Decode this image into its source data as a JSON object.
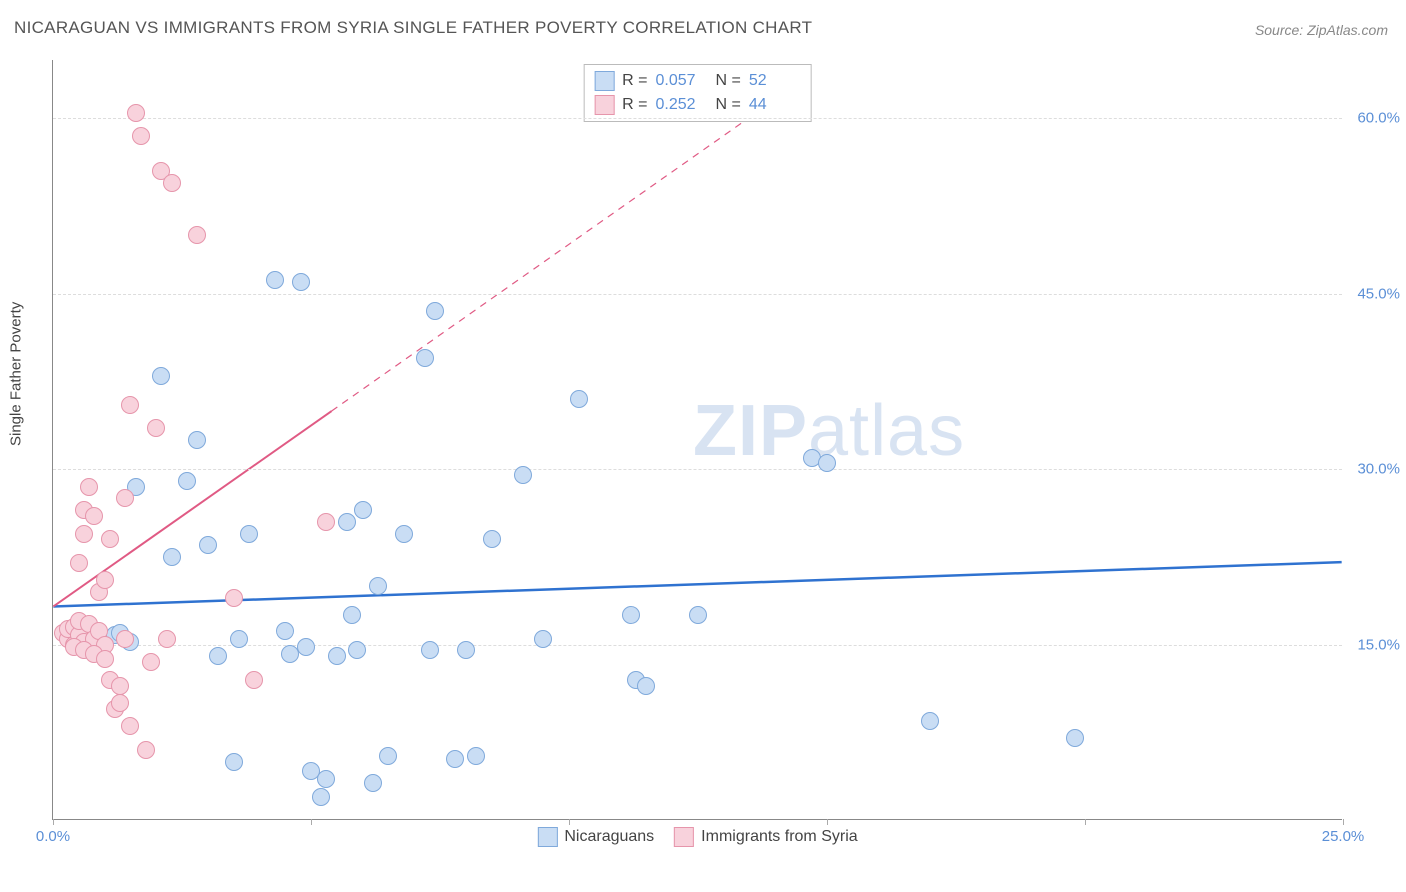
{
  "title": "NICARAGUAN VS IMMIGRANTS FROM SYRIA SINGLE FATHER POVERTY CORRELATION CHART",
  "source": "Source: ZipAtlas.com",
  "y_axis_label": "Single Father Poverty",
  "watermark": {
    "bold": "ZIP",
    "light": "atlas"
  },
  "chart": {
    "type": "scatter",
    "background_color": "#ffffff",
    "grid_color": "#dddddd",
    "axis_color": "#888888",
    "xlim": [
      0,
      25
    ],
    "ylim": [
      0,
      65
    ],
    "x_ticks": [
      0,
      5,
      10,
      15,
      20,
      25
    ],
    "x_tick_labels": {
      "0": "0.0%",
      "25": "25.0%"
    },
    "y_grid": [
      15,
      30,
      45,
      60
    ],
    "y_tick_labels": {
      "15": "15.0%",
      "30": "30.0%",
      "45": "45.0%",
      "60": "60.0%"
    },
    "marker_radius": 9,
    "marker_stroke_width": 1.5,
    "series": [
      {
        "name": "Nicaraguans",
        "fill": "#c9ddf4",
        "stroke": "#7fa9db",
        "R": "0.057",
        "N": "52",
        "trend": {
          "color": "#2f72d0",
          "width": 2.5,
          "y_at_x0": 18.2,
          "y_at_x25": 22.0,
          "dash_from_x": 25
        },
        "points": [
          [
            0.3,
            16.2
          ],
          [
            0.5,
            15.5
          ],
          [
            0.7,
            16.5
          ],
          [
            0.9,
            15.0
          ],
          [
            1.2,
            15.8
          ],
          [
            1.3,
            16.0
          ],
          [
            1.5,
            15.2
          ],
          [
            1.6,
            28.5
          ],
          [
            2.1,
            38.0
          ],
          [
            2.3,
            22.5
          ],
          [
            2.6,
            29.0
          ],
          [
            2.8,
            32.5
          ],
          [
            3.0,
            23.5
          ],
          [
            3.2,
            14.0
          ],
          [
            3.5,
            5.0
          ],
          [
            3.6,
            15.5
          ],
          [
            3.8,
            24.5
          ],
          [
            4.3,
            46.2
          ],
          [
            4.5,
            16.2
          ],
          [
            4.6,
            14.2
          ],
          [
            4.8,
            46.0
          ],
          [
            4.9,
            14.8
          ],
          [
            5.0,
            4.2
          ],
          [
            5.2,
            2.0
          ],
          [
            5.3,
            3.5
          ],
          [
            5.5,
            14.0
          ],
          [
            5.7,
            25.5
          ],
          [
            5.8,
            17.5
          ],
          [
            5.9,
            14.5
          ],
          [
            6.0,
            26.5
          ],
          [
            6.2,
            3.2
          ],
          [
            6.3,
            20.0
          ],
          [
            6.5,
            5.5
          ],
          [
            6.8,
            24.5
          ],
          [
            7.2,
            39.5
          ],
          [
            7.3,
            14.5
          ],
          [
            7.4,
            43.5
          ],
          [
            7.8,
            5.2
          ],
          [
            8.0,
            14.5
          ],
          [
            8.2,
            5.5
          ],
          [
            8.5,
            24.0
          ],
          [
            9.1,
            29.5
          ],
          [
            9.5,
            15.5
          ],
          [
            10.2,
            36.0
          ],
          [
            11.2,
            17.5
          ],
          [
            11.3,
            12.0
          ],
          [
            11.5,
            11.5
          ],
          [
            12.5,
            17.5
          ],
          [
            14.7,
            31.0
          ],
          [
            15.0,
            30.5
          ],
          [
            17.0,
            8.5
          ],
          [
            19.8,
            7.0
          ]
        ]
      },
      {
        "name": "Immigrants from Syria",
        "fill": "#f8d2dc",
        "stroke": "#e695ab",
        "R": "0.252",
        "N": "44",
        "trend": {
          "color": "#e05a84",
          "width": 2,
          "y_at_x0": 18.2,
          "slope": 3.1,
          "solid_to_x": 5.4,
          "dash_to_x": 13.5
        },
        "points": [
          [
            0.2,
            16.0
          ],
          [
            0.3,
            15.5
          ],
          [
            0.3,
            16.3
          ],
          [
            0.4,
            15.0
          ],
          [
            0.4,
            16.5
          ],
          [
            0.5,
            15.8
          ],
          [
            0.5,
            17.0
          ],
          [
            0.5,
            22.0
          ],
          [
            0.6,
            24.5
          ],
          [
            0.6,
            26.5
          ],
          [
            0.6,
            15.2
          ],
          [
            0.7,
            16.8
          ],
          [
            0.7,
            28.5
          ],
          [
            0.8,
            15.5
          ],
          [
            0.8,
            26.0
          ],
          [
            0.9,
            16.2
          ],
          [
            0.9,
            19.5
          ],
          [
            1.0,
            15.0
          ],
          [
            1.0,
            20.5
          ],
          [
            1.1,
            12.0
          ],
          [
            1.1,
            24.0
          ],
          [
            1.2,
            9.5
          ],
          [
            1.3,
            10.0
          ],
          [
            1.3,
            11.5
          ],
          [
            1.4,
            15.5
          ],
          [
            1.4,
            27.5
          ],
          [
            1.5,
            8.0
          ],
          [
            1.5,
            35.5
          ],
          [
            1.6,
            60.5
          ],
          [
            1.7,
            58.5
          ],
          [
            1.8,
            6.0
          ],
          [
            1.9,
            13.5
          ],
          [
            2.0,
            33.5
          ],
          [
            2.1,
            55.5
          ],
          [
            2.2,
            15.5
          ],
          [
            2.3,
            54.5
          ],
          [
            2.8,
            50.0
          ],
          [
            3.5,
            19.0
          ],
          [
            3.9,
            12.0
          ],
          [
            5.3,
            25.5
          ],
          [
            0.4,
            14.8
          ],
          [
            0.6,
            14.5
          ],
          [
            0.8,
            14.2
          ],
          [
            1.0,
            13.8
          ]
        ]
      }
    ]
  },
  "legend_bottom": [
    {
      "label": "Nicaraguans",
      "fill": "#c9ddf4",
      "stroke": "#7fa9db"
    },
    {
      "label": "Immigrants from Syria",
      "fill": "#f8d2dc",
      "stroke": "#e695ab"
    }
  ]
}
